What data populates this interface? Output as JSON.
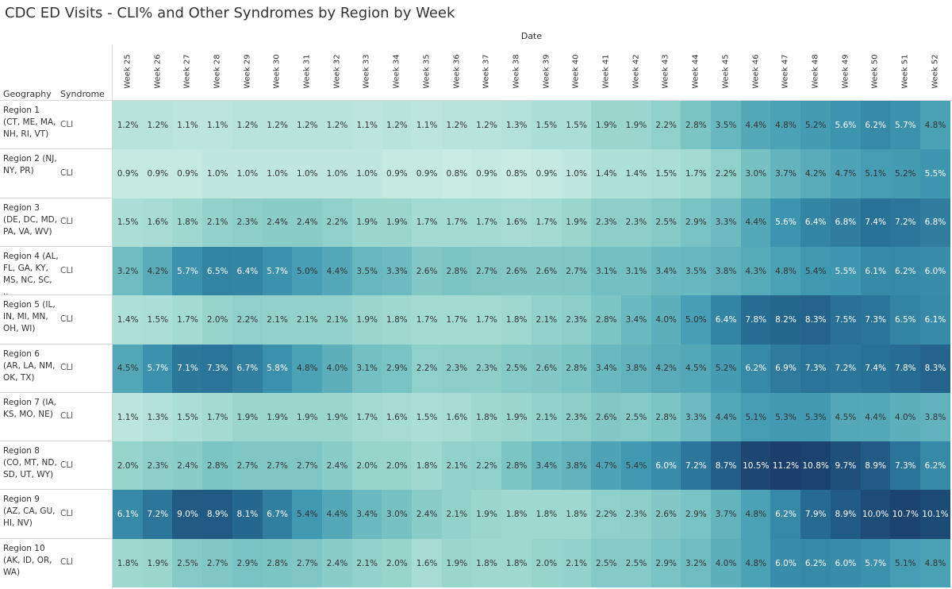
{
  "title": "CDC ED Visits - CLI% and Other Syndromes by Region by Week",
  "column_group_label": "Date",
  "headers": {
    "geography": "Geography",
    "syndrome": "Syndrome"
  },
  "chart_data": {
    "type": "heatmap",
    "title": "CDC ED Visits - CLI% and Other Syndromes by Region by Week",
    "x_label": "Date",
    "x_categories": [
      "Week 25",
      "Week 26",
      "Week 27",
      "Week 28",
      "Week 29",
      "Week 30",
      "Week 31",
      "Week 32",
      "Week 33",
      "Week 34",
      "Week 35",
      "Week 36",
      "Week 37",
      "Week 38",
      "Week 39",
      "Week 40",
      "Week 41",
      "Week 42",
      "Week 43",
      "Week 44",
      "Week 45",
      "Week 46",
      "Week 47",
      "Week 48",
      "Week 49",
      "Week 50",
      "Week 51",
      "Week 52"
    ],
    "rows": [
      {
        "geography": "Region 1 (CT, ME, MA, NH, RI, VT)",
        "syndrome": "CLI",
        "values": [
          "1.2%",
          "1.2%",
          "1.1%",
          "1.1%",
          "1.2%",
          "1.2%",
          "1.2%",
          "1.2%",
          "1.1%",
          "1.2%",
          "1.1%",
          "1.2%",
          "1.2%",
          "1.3%",
          "1.5%",
          "1.5%",
          "1.9%",
          "1.9%",
          "2.2%",
          "2.8%",
          "3.5%",
          "4.4%",
          "4.8%",
          "5.2%",
          "5.6%",
          "6.2%",
          "5.7%",
          "4.8%"
        ]
      },
      {
        "geography": "Region 2 (NJ, NY, PR)",
        "syndrome": "CLI",
        "values": [
          "0.9%",
          "0.9%",
          "0.9%",
          "1.0%",
          "1.0%",
          "1.0%",
          "1.0%",
          "1.0%",
          "1.0%",
          "0.9%",
          "0.9%",
          "0.8%",
          "0.9%",
          "0.8%",
          "0.9%",
          "1.0%",
          "1.4%",
          "1.4%",
          "1.5%",
          "1.7%",
          "2.2%",
          "3.0%",
          "3.7%",
          "4.2%",
          "4.7%",
          "5.1%",
          "5.2%",
          "5.5%"
        ]
      },
      {
        "geography": "Region 3 (DE, DC, MD, PA, VA, WV)",
        "syndrome": "CLI",
        "values": [
          "1.5%",
          "1.6%",
          "1.8%",
          "2.1%",
          "2.3%",
          "2.4%",
          "2.4%",
          "2.2%",
          "1.9%",
          "1.9%",
          "1.7%",
          "1.7%",
          "1.7%",
          "1.6%",
          "1.7%",
          "1.9%",
          "2.3%",
          "2.3%",
          "2.5%",
          "2.9%",
          "3.3%",
          "4.4%",
          "5.6%",
          "6.4%",
          "6.8%",
          "7.4%",
          "7.2%",
          "6.8%"
        ]
      },
      {
        "geography": "Region 4 (AL, FL, GA, KY, MS, NC, SC, ..",
        "syndrome": "CLI",
        "values": [
          "3.2%",
          "4.2%",
          "5.7%",
          "6.5%",
          "6.4%",
          "5.7%",
          "5.0%",
          "4.4%",
          "3.5%",
          "3.3%",
          "2.6%",
          "2.8%",
          "2.7%",
          "2.6%",
          "2.6%",
          "2.7%",
          "3.1%",
          "3.1%",
          "3.4%",
          "3.5%",
          "3.8%",
          "4.3%",
          "4.8%",
          "5.4%",
          "5.5%",
          "6.1%",
          "6.2%",
          "6.0%"
        ]
      },
      {
        "geography": "Region 5 (IL, IN, MI, MN, OH, WI)",
        "syndrome": "CLI",
        "values": [
          "1.4%",
          "1.5%",
          "1.7%",
          "2.0%",
          "2.2%",
          "2.1%",
          "2.1%",
          "2.1%",
          "1.9%",
          "1.8%",
          "1.7%",
          "1.7%",
          "1.7%",
          "1.8%",
          "2.1%",
          "2.3%",
          "2.8%",
          "3.4%",
          "4.0%",
          "5.0%",
          "6.4%",
          "7.8%",
          "8.2%",
          "8.3%",
          "7.5%",
          "7.3%",
          "6.5%",
          "6.1%"
        ]
      },
      {
        "geography": "Region 6 (AR, LA, NM, OK, TX)",
        "syndrome": "CLI",
        "values": [
          "4.5%",
          "5.7%",
          "7.1%",
          "7.3%",
          "6.7%",
          "5.8%",
          "4.8%",
          "4.0%",
          "3.1%",
          "2.9%",
          "2.2%",
          "2.3%",
          "2.3%",
          "2.5%",
          "2.6%",
          "2.8%",
          "3.4%",
          "3.8%",
          "4.2%",
          "4.5%",
          "5.2%",
          "6.2%",
          "6.9%",
          "7.3%",
          "7.2%",
          "7.4%",
          "7.8%",
          "8.3%"
        ]
      },
      {
        "geography": "Region 7 (IA, KS, MO, NE)",
        "syndrome": "CLI",
        "values": [
          "1.1%",
          "1.3%",
          "1.5%",
          "1.7%",
          "1.9%",
          "1.9%",
          "1.9%",
          "1.9%",
          "1.7%",
          "1.6%",
          "1.5%",
          "1.6%",
          "1.8%",
          "1.9%",
          "2.1%",
          "2.3%",
          "2.6%",
          "2.5%",
          "2.8%",
          "3.3%",
          "4.4%",
          "5.1%",
          "5.3%",
          "5.3%",
          "4.5%",
          "4.4%",
          "4.0%",
          "3.8%"
        ]
      },
      {
        "geography": "Region 8 (CO, MT, ND, SD, UT, WY)",
        "syndrome": "CLI",
        "values": [
          "2.0%",
          "2.3%",
          "2.4%",
          "2.8%",
          "2.7%",
          "2.7%",
          "2.7%",
          "2.4%",
          "2.0%",
          "2.0%",
          "1.8%",
          "2.1%",
          "2.2%",
          "2.8%",
          "3.4%",
          "3.8%",
          "4.7%",
          "5.4%",
          "6.0%",
          "7.2%",
          "8.7%",
          "10.5%",
          "11.2%",
          "10.8%",
          "9.7%",
          "8.9%",
          "7.3%",
          "6.2%"
        ]
      },
      {
        "geography": "Region 9 (AZ, CA, GU, HI, NV)",
        "syndrome": "CLI",
        "values": [
          "6.1%",
          "7.2%",
          "9.0%",
          "8.9%",
          "8.1%",
          "6.7%",
          "5.4%",
          "4.4%",
          "3.4%",
          "3.0%",
          "2.4%",
          "2.1%",
          "1.9%",
          "1.8%",
          "1.8%",
          "1.8%",
          "2.2%",
          "2.3%",
          "2.6%",
          "2.9%",
          "3.7%",
          "4.8%",
          "6.2%",
          "7.9%",
          "8.9%",
          "10.0%",
          "10.7%",
          "10.1%"
        ]
      },
      {
        "geography": "Region 10 (AK, ID, OR, WA)",
        "syndrome": "CLI",
        "values": [
          "1.8%",
          "1.9%",
          "2.5%",
          "2.7%",
          "2.9%",
          "2.8%",
          "2.7%",
          "2.4%",
          "2.1%",
          "2.0%",
          "1.6%",
          "1.9%",
          "1.8%",
          "1.8%",
          "2.0%",
          "2.1%",
          "2.5%",
          "2.5%",
          "2.9%",
          "3.2%",
          "4.0%",
          "4.8%",
          "6.0%",
          "6.2%",
          "6.0%",
          "5.7%",
          "5.1%",
          "4.8%"
        ]
      }
    ]
  }
}
